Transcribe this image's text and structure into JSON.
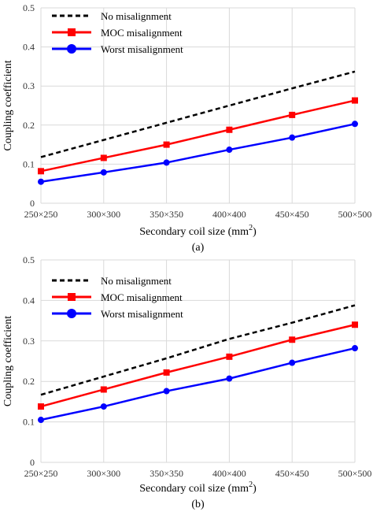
{
  "chart_data": [
    {
      "panel_label": "(a)",
      "type": "line",
      "xlabel": "Secondary coil size (mm",
      "xlabel_sup": "2",
      "xlabel_end": ")",
      "ylabel": "Coupling coefficient",
      "categories": [
        "250×250",
        "300×300",
        "350×350",
        "400×400",
        "450×450",
        "500×500"
      ],
      "y_ticks": [
        "0",
        "0.1",
        "0.2",
        "0.3",
        "0.4",
        "0.5"
      ],
      "ylim": [
        0,
        0.5
      ],
      "grid": true,
      "legend_position": "top-left",
      "series": [
        {
          "name": "No misalignment",
          "color": "#000000",
          "style": "dashed",
          "marker": "none",
          "values": [
            0.118,
            0.162,
            0.206,
            0.25,
            0.294,
            0.337
          ]
        },
        {
          "name": "MOC misalignment",
          "color": "#ff0000",
          "style": "solid",
          "marker": "square",
          "values": [
            0.082,
            0.116,
            0.15,
            0.188,
            0.226,
            0.263
          ]
        },
        {
          "name": "Worst misalignment",
          "color": "#0000ff",
          "style": "solid",
          "marker": "circle",
          "values": [
            0.055,
            0.079,
            0.104,
            0.137,
            0.168,
            0.203
          ]
        }
      ]
    },
    {
      "panel_label": "(b)",
      "type": "line",
      "xlabel": "Secondary coil size (mm",
      "xlabel_sup": "2",
      "xlabel_end": ")",
      "ylabel": "Coupling coefficient",
      "categories": [
        "250×250",
        "300×300",
        "350×350",
        "400×400",
        "450×450",
        "500×500"
      ],
      "y_ticks": [
        "0",
        "0.1",
        "0.2",
        "0.3",
        "0.4",
        "0.5"
      ],
      "ylim": [
        0,
        0.5
      ],
      "grid": true,
      "legend_position": "top-left",
      "series": [
        {
          "name": "No misalignment",
          "color": "#000000",
          "style": "dashed",
          "marker": "none",
          "values": [
            0.167,
            0.212,
            0.257,
            0.305,
            0.345,
            0.388
          ]
        },
        {
          "name": "MOC misalignment",
          "color": "#ff0000",
          "style": "solid",
          "marker": "square",
          "values": [
            0.138,
            0.18,
            0.222,
            0.261,
            0.303,
            0.34
          ]
        },
        {
          "name": "Worst misalignment",
          "color": "#0000ff",
          "style": "solid",
          "marker": "circle",
          "values": [
            0.105,
            0.138,
            0.176,
            0.207,
            0.246,
            0.282
          ]
        }
      ]
    }
  ]
}
